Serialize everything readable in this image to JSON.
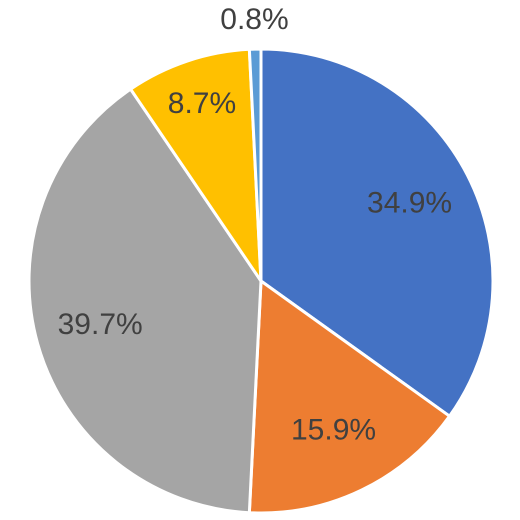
{
  "chart_data": {
    "type": "pie",
    "title": "",
    "legend": "none",
    "start_angle_deg": 0,
    "direction": "clockwise",
    "slices": [
      {
        "label": "34.9%",
        "value": 34.9,
        "color": "#4472C4"
      },
      {
        "label": "15.9%",
        "value": 15.9,
        "color": "#ED7D31"
      },
      {
        "label": "39.7%",
        "value": 39.7,
        "color": "#A5A5A5"
      },
      {
        "label": "8.7%",
        "value": 8.7,
        "color": "#FFC000"
      },
      {
        "label": "0.8%",
        "value": 0.8,
        "color": "#5B9BD5"
      }
    ]
  }
}
